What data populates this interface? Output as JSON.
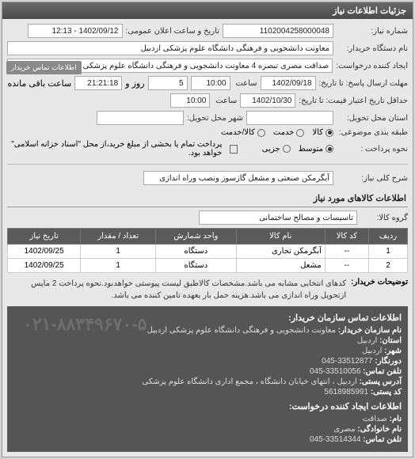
{
  "panel_title": "جزئیات اطلاعات نیاز",
  "need_no_label": "شماره نیاز:",
  "need_no": "1102004258000048",
  "announce_label": "تاریخ و ساعت اعلان عمومی:",
  "announce_val": "1402/09/12 - 12:13",
  "buyer_org_label": "نام دستگاه خریدار:",
  "buyer_org": "معاونت دانشجویی و فرهنگی دانشگاه علوم پزشکی اردبیل",
  "requester_label": "ایجاد کننده درخواست:",
  "requester": "صداقت مصری تبصره 4 معاونت دانشجویی و فرهنگی دانشگاه علوم پزشکی اردبیل",
  "badge_text": "اطلاعات تماس خریدار",
  "deadline_reply_label": "مهلت ارسال پاسخ: تا تاریخ:",
  "deadline_reply_date": "1402/09/18",
  "time_label": "ساعت",
  "deadline_reply_time": "10:00",
  "remain_days": "5",
  "remain_days_label": "روز و",
  "remain_time": "21:21:18",
  "remain_label": "ساعت باقی مانده",
  "validity_label": "حداقل تاریخ اعتبار قیمت: تا تاریخ:",
  "validity_date": "1402/10/30",
  "validity_time": "10:00",
  "delivery_addr_label": "استان محل تحویل:",
  "delivery_city_label": "شهر محل تحویل:",
  "pkg_label": "طبقه بندی موضوعی:",
  "pkg_options": {
    "a": "کالا",
    "b": "خدمت",
    "c": "کالا/خدمت"
  },
  "pay_label": "نحوه پرداخت :",
  "pay_options": {
    "a": "متوسط",
    "b": "جزیی"
  },
  "pay_note_chk": "پرداخت تمام یا بخشی از مبلغ خرید،از محل \"اسناد خزانه اسلامی\" خواهد بود.",
  "keyword_label": "شرح کلی نیاز:",
  "keyword_val": "آبگرمکن صنعتی و مشعل گازسوز ونصب وراه اندازی",
  "goods_section": "اطلاعات کالاهای مورد نیاز",
  "group_label": "گروه کالا:",
  "group_val": "تاسیسات و مصالح ساختمانی",
  "table": {
    "headers": [
      "ردیف",
      "کد کالا",
      "نام کالا",
      "واحد شمارش",
      "تعداد / مقدار",
      "تاریخ نیاز"
    ],
    "rows": [
      [
        "1",
        "--",
        "آبگرمکن تجاری",
        "دستگاه",
        "1",
        "1402/09/25"
      ],
      [
        "2",
        "--",
        "مشعل",
        "دستگاه",
        "1",
        "1402/09/25"
      ]
    ]
  },
  "desc_label": "توضیحات خریدار:",
  "desc_text": "کدهای انتخابی مشابه می باشد.مشخصات کالاطبق لیست پیوستی خواهدبود.نحوه پرداخت 2 ماپس ازتحویل وراه اندازی می باشد.هزینه حمل بار بعهده تامین کننده می باشد.",
  "contact_buyer_title": "اطلاعات تماس سازمان خریدار:",
  "contact_buyer": {
    "org_l": "نام سازمان خریدار:",
    "org": "معاونت دانشجویی و فرهنگی دانشگاه علوم پزشکی اردبیل",
    "prov_l": "استان:",
    "prov": "اردبیل",
    "city_l": "شهر:",
    "city": "اردبیل",
    "fax_l": "دورنگار:",
    "fax": "33512877-045",
    "tel_l": "تلفن تماس:",
    "tel": "33510056-045",
    "addr_l": "آدرس پستی:",
    "addr": "اردبیل ، انتهای خیابان دانشگاه ، مجمع اداری دانشگاه علوم پزشکی",
    "post_l": "کد پستی:",
    "post": "5618985991"
  },
  "contact_req_title": "اطلاعات ایجاد کننده درخواست:",
  "contact_req": {
    "name_l": "نام:",
    "name": "صداقت",
    "family_l": "نام خانوادگی:",
    "family": "مصری",
    "tel_l": "تلفن تماس:",
    "tel": "33514344-045"
  },
  "watermark": "۰۲۱-۸۸۳۴۹۶۷۰-۵"
}
